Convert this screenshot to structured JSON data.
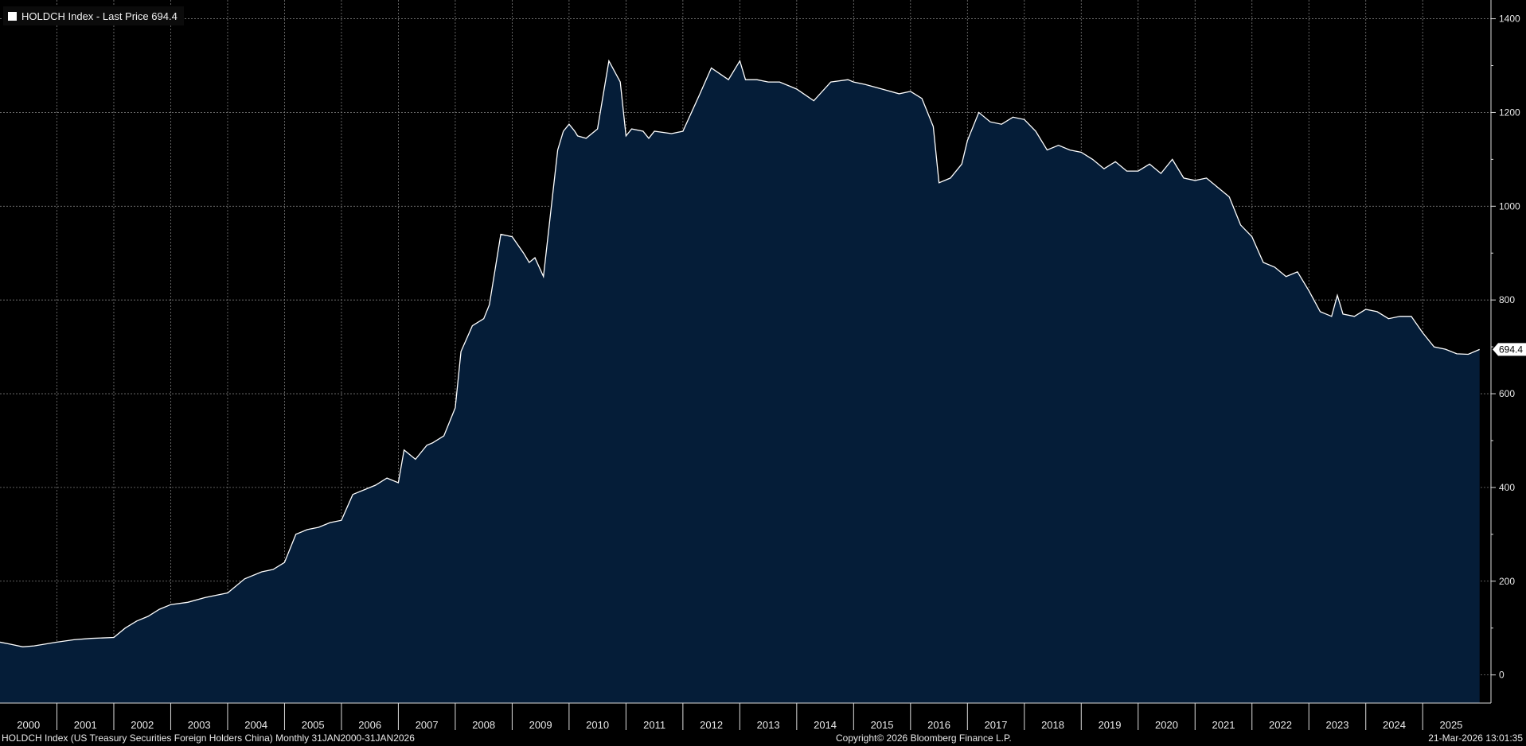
{
  "legend": {
    "label": "HOLDCH Index - Last Price 694.4"
  },
  "footer": {
    "description": "HOLDCH Index (US Treasury Securities Foreign Holders China) Monthly 31JAN2000-31JAN2026",
    "copyright": "Copyright© 2026 Bloomberg Finance L.P.",
    "timestamp": "21-Mar-2026 13:01:35"
  },
  "last_value_label": "694.4",
  "colors": {
    "background": "#000000",
    "area_fill": "#051d38",
    "line": "#ffffff",
    "grid": "#7a7a7a"
  },
  "chart_data": {
    "type": "area",
    "title": "",
    "xlabel": "",
    "ylabel": "",
    "xlim": [
      2000.0,
      2026.2
    ],
    "ylim": [
      -60,
      1440
    ],
    "yticks": [
      0,
      200,
      400,
      600,
      800,
      1000,
      1200,
      1400
    ],
    "xtick_labels": [
      "2000",
      "2001",
      "2002",
      "2003",
      "2004",
      "2005",
      "2006",
      "2007",
      "2008",
      "2009",
      "2010",
      "2011",
      "2012",
      "2013",
      "2014",
      "2015",
      "2016",
      "2017",
      "2018",
      "2019",
      "2020",
      "2021",
      "2022",
      "2023",
      "2024",
      "2025"
    ],
    "grid": true,
    "legend_position": "top-left",
    "series": [
      {
        "name": "HOLDCH Index - Last Price",
        "x": [
          2000.0,
          2000.2,
          2000.4,
          2000.6,
          2001.0,
          2001.3,
          2001.6,
          2002.0,
          2002.2,
          2002.4,
          2002.6,
          2002.8,
          2003.0,
          2003.3,
          2003.6,
          2004.0,
          2004.3,
          2004.6,
          2004.8,
          2005.0,
          2005.2,
          2005.4,
          2005.6,
          2005.8,
          2006.0,
          2006.2,
          2006.4,
          2006.6,
          2006.8,
          2007.0,
          2007.1,
          2007.3,
          2007.5,
          2007.6,
          2007.8,
          2008.0,
          2008.1,
          2008.3,
          2008.5,
          2008.6,
          2008.8,
          2009.0,
          2009.2,
          2009.3,
          2009.4,
          2009.55,
          2009.8,
          2009.9,
          2010.0,
          2010.1,
          2010.15,
          2010.3,
          2010.5,
          2010.7,
          2010.9,
          2011.0,
          2011.1,
          2011.3,
          2011.4,
          2011.5,
          2011.8,
          2012.0,
          2012.3,
          2012.5,
          2012.8,
          2013.0,
          2013.1,
          2013.3,
          2013.5,
          2013.7,
          2013.9,
          2014.0,
          2014.3,
          2014.6,
          2014.9,
          2015.0,
          2015.2,
          2015.5,
          2015.8,
          2016.0,
          2016.2,
          2016.4,
          2016.5,
          2016.7,
          2016.9,
          2017.0,
          2017.2,
          2017.4,
          2017.6,
          2017.8,
          2018.0,
          2018.2,
          2018.4,
          2018.6,
          2018.8,
          2019.0,
          2019.2,
          2019.4,
          2019.6,
          2019.8,
          2020.0,
          2020.2,
          2020.4,
          2020.6,
          2020.8,
          2021.0,
          2021.2,
          2021.4,
          2021.6,
          2021.8,
          2022.0,
          2022.2,
          2022.4,
          2022.6,
          2022.8,
          2023.0,
          2023.2,
          2023.4,
          2023.5,
          2023.6,
          2023.8,
          2024.0,
          2024.2,
          2024.4,
          2024.6,
          2024.8,
          2025.0,
          2025.2,
          2025.4,
          2025.6,
          2025.8,
          2026.0
        ],
        "values": [
          70,
          65,
          60,
          62,
          70,
          75,
          78,
          80,
          100,
          115,
          125,
          140,
          150,
          155,
          165,
          175,
          205,
          220,
          225,
          240,
          300,
          310,
          315,
          325,
          330,
          385,
          395,
          405,
          420,
          410,
          480,
          460,
          490,
          495,
          510,
          570,
          690,
          745,
          760,
          790,
          940,
          935,
          900,
          880,
          890,
          850,
          1120,
          1160,
          1175,
          1160,
          1150,
          1145,
          1165,
          1310,
          1265,
          1150,
          1165,
          1160,
          1145,
          1160,
          1155,
          1160,
          1240,
          1295,
          1270,
          1310,
          1270,
          1270,
          1265,
          1265,
          1255,
          1250,
          1225,
          1265,
          1270,
          1265,
          1260,
          1250,
          1240,
          1245,
          1230,
          1170,
          1050,
          1060,
          1090,
          1140,
          1200,
          1180,
          1175,
          1190,
          1185,
          1160,
          1120,
          1130,
          1120,
          1115,
          1100,
          1080,
          1095,
          1075,
          1075,
          1090,
          1070,
          1100,
          1060,
          1055,
          1060,
          1040,
          1020,
          960,
          935,
          880,
          870,
          850,
          860,
          820,
          775,
          765,
          810,
          770,
          765,
          780,
          775,
          760,
          765,
          765,
          730,
          700,
          695,
          685,
          684,
          694.4
        ]
      }
    ]
  }
}
